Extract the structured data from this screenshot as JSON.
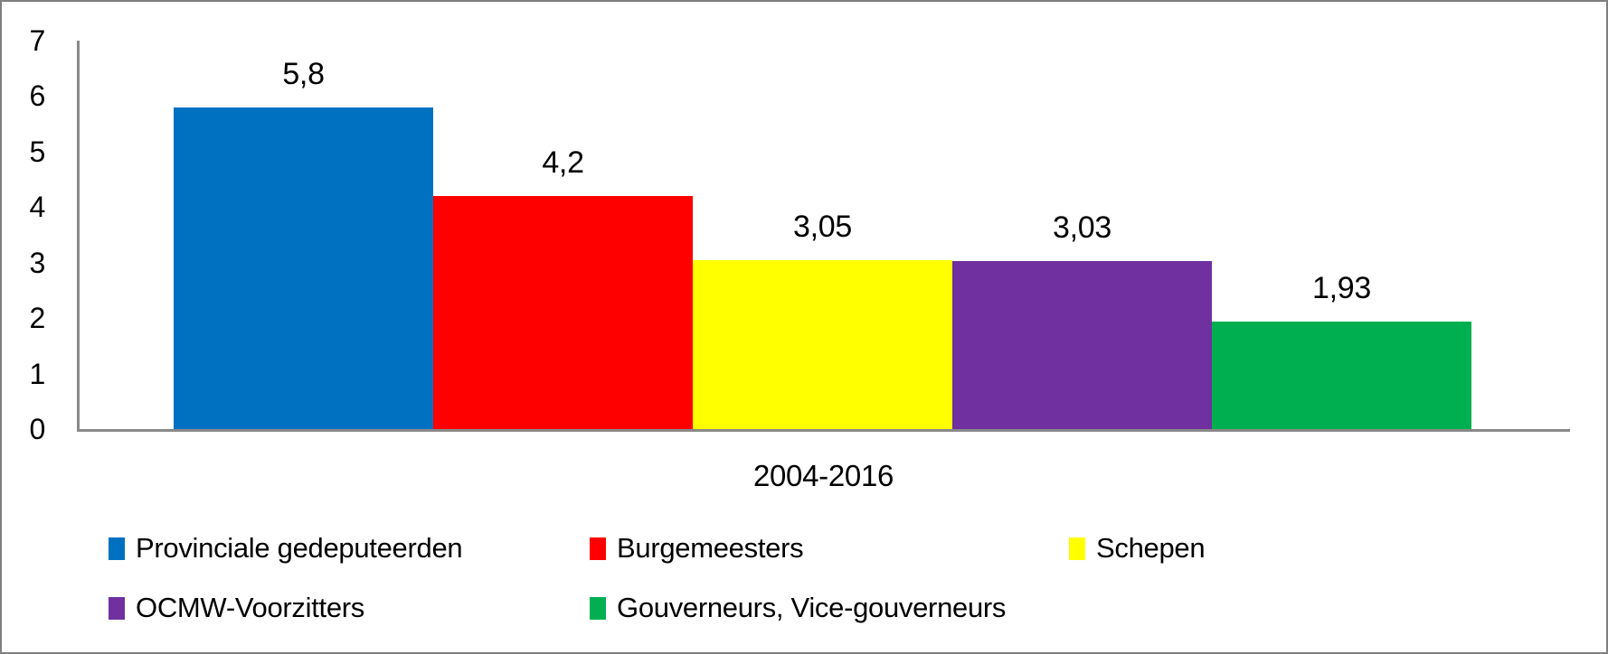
{
  "chart_data": {
    "type": "bar",
    "title": "",
    "categories": [
      "2004-2016"
    ],
    "series": [
      {
        "name": "Provinciale gedeputeerden",
        "values": [
          5.8
        ],
        "label": "5,8",
        "color": "#0070C0"
      },
      {
        "name": "Burgemeesters",
        "values": [
          4.2
        ],
        "label": "4,2",
        "color": "#FF0000"
      },
      {
        "name": "Schepen",
        "values": [
          3.05
        ],
        "label": "3,05",
        "color": "#FFFF00"
      },
      {
        "name": "OCMW-Voorzitters",
        "values": [
          3.03
        ],
        "label": "3,03",
        "color": "#7030A0"
      },
      {
        "name": "Gouverneurs, Vice-gouverneurs",
        "values": [
          1.93
        ],
        "label": "1,93",
        "color": "#00B050"
      }
    ],
    "xlabel": "2004-2016",
    "ylabel": "",
    "ylim": [
      0,
      7
    ],
    "yticks": [
      "0",
      "1",
      "2",
      "3",
      "4",
      "5",
      "6",
      "7"
    ],
    "grid": false,
    "legend_position": "bottom",
    "axis_color": "#898989",
    "text_color": "#000000"
  }
}
